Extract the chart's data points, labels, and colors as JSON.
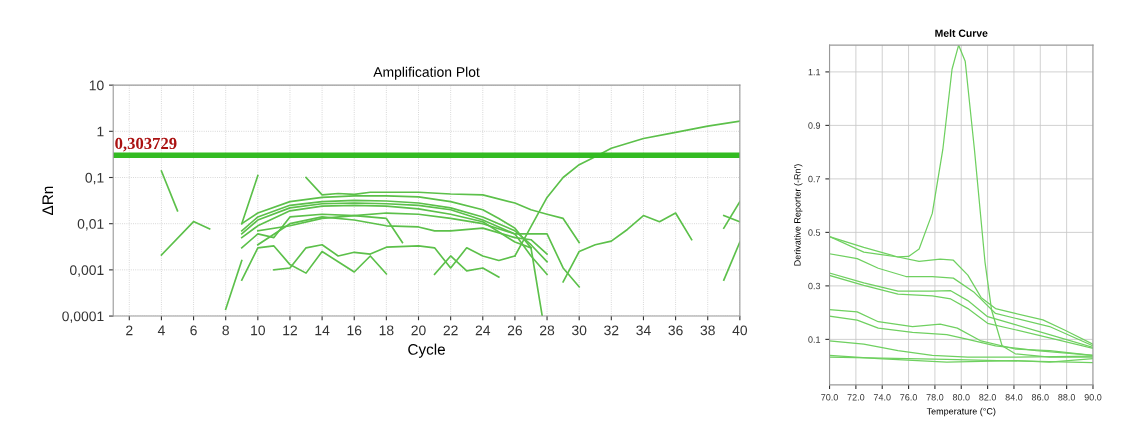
{
  "chart_data": [
    {
      "type": "line",
      "title": "Amplification Plot",
      "xlabel": "Cycle",
      "ylabel": "ΔRn",
      "log": "y",
      "grid": true,
      "xlim": [
        1,
        40
      ],
      "xticks": [
        2,
        4,
        6,
        8,
        10,
        12,
        14,
        16,
        18,
        20,
        22,
        24,
        26,
        28,
        30,
        32,
        34,
        36,
        38,
        40
      ],
      "ylim": [
        0.0001,
        10
      ],
      "yticks": [
        {
          "value": 0.0001,
          "label": "0,0001"
        },
        {
          "value": 0.001,
          "label": "0,001"
        },
        {
          "value": 0.01,
          "label": "0,01"
        },
        {
          "value": 0.1,
          "label": "0,1"
        },
        1,
        10
      ],
      "ref_lines": [
        {
          "axis": "y",
          "value": 0.303729,
          "label": "0,303729",
          "color": "#33bb22"
        }
      ],
      "series": [
        {
          "color": "#5cc04a",
          "x": [
            4,
            5
          ],
          "values": [
            0.138,
            0.019
          ]
        },
        {
          "color": "#5cc04a",
          "x": [
            4,
            6,
            7
          ],
          "values": [
            0.0021,
            0.0111,
            0.0077
          ]
        },
        {
          "color": "#5cc04a",
          "x": [
            8,
            9
          ],
          "values": [
            0.00014,
            0.0016
          ]
        },
        {
          "color": "#5cc04a",
          "x": [
            9,
            10
          ],
          "values": [
            0.01,
            0.11
          ]
        },
        {
          "color": "#5cc04a",
          "x": [
            13,
            14,
            15,
            16,
            17,
            18,
            20,
            22,
            24,
            26,
            27,
            28,
            29,
            30
          ],
          "values": [
            0.1,
            0.042,
            0.045,
            0.043,
            0.048,
            0.048,
            0.048,
            0.044,
            0.042,
            0.028,
            0.02,
            0.016,
            0.013,
            0.0039
          ]
        },
        {
          "color": "#5cc04a",
          "x": [
            9,
            10,
            12,
            14,
            16,
            18,
            20,
            22,
            24,
            25,
            26,
            27,
            27.7
          ],
          "values": [
            0.01,
            0.017,
            0.03,
            0.037,
            0.04,
            0.04,
            0.038,
            0.03,
            0.02,
            0.013,
            0.008,
            0.003,
            0.0001
          ]
        },
        {
          "color": "#5cc04a",
          "x": [
            9,
            10,
            12,
            14,
            16,
            18,
            20,
            22,
            24,
            26,
            27,
            28
          ],
          "values": [
            0.007,
            0.014,
            0.025,
            0.03,
            0.032,
            0.031,
            0.028,
            0.022,
            0.014,
            0.007,
            0.0035,
            0.0015
          ]
        },
        {
          "color": "#5cc04a",
          "x": [
            9,
            10,
            12,
            14,
            16,
            18,
            20,
            22,
            24,
            26,
            27,
            28
          ],
          "values": [
            0.006,
            0.012,
            0.022,
            0.027,
            0.028,
            0.027,
            0.025,
            0.02,
            0.012,
            0.006,
            0.002,
            0.0008
          ]
        },
        {
          "color": "#5cc04a",
          "x": [
            9,
            10,
            12,
            14,
            16,
            18,
            20,
            22,
            24,
            26,
            27
          ],
          "values": [
            0.005,
            0.009,
            0.019,
            0.024,
            0.025,
            0.024,
            0.021,
            0.016,
            0.011,
            0.004,
            0.003
          ]
        },
        {
          "color": "#5cc04a",
          "x": [
            9,
            10,
            11,
            12,
            14,
            16,
            18,
            19
          ],
          "values": [
            0.003,
            0.006,
            0.005,
            0.014,
            0.016,
            0.015,
            0.013,
            0.0039
          ]
        },
        {
          "color": "#5cc04a",
          "x": [
            10,
            12,
            14,
            16,
            18,
            20,
            22,
            24,
            26,
            28,
            29,
            30
          ],
          "values": [
            0.007,
            0.009,
            0.013,
            0.015,
            0.017,
            0.016,
            0.013,
            0.01,
            0.006,
            0.006,
            0.0011,
            0.00043
          ]
        },
        {
          "color": "#5cc04a",
          "x": [
            10,
            12,
            14,
            16,
            18,
            20,
            21,
            22,
            24,
            26,
            27,
            28
          ],
          "values": [
            0.0035,
            0.01,
            0.014,
            0.012,
            0.009,
            0.0085,
            0.007,
            0.007,
            0.008,
            0.005,
            0.0045,
            0.0022
          ]
        },
        {
          "color": "#5cc04a",
          "x": [
            9,
            10,
            11,
            12,
            13,
            14,
            15,
            16,
            17,
            18
          ],
          "values": [
            0.0006,
            0.003,
            0.0033,
            0.0013,
            0.00085,
            0.0025,
            0.0015,
            0.0009,
            0.002,
            0.00082
          ]
        },
        {
          "color": "#5cc04a",
          "x": [
            11,
            12,
            13,
            14,
            15,
            16,
            17,
            18,
            20,
            21,
            22,
            23,
            24,
            25,
            26
          ],
          "values": [
            0.001,
            0.0011,
            0.003,
            0.0035,
            0.002,
            0.0024,
            0.0022,
            0.0031,
            0.0033,
            0.003,
            0.0011,
            0.003,
            0.002,
            0.0016,
            0.002
          ]
        },
        {
          "color": "#5cc04a",
          "x": [
            21,
            22,
            23,
            24,
            25
          ],
          "values": [
            0.0008,
            0.002,
            0.00095,
            0.0011,
            0.0007
          ]
        },
        {
          "color": "#5cc04a",
          "x": [
            26,
            27,
            28,
            29,
            30,
            31,
            32,
            34,
            36,
            38,
            40
          ],
          "values": [
            0.002,
            0.0086,
            0.037,
            0.1,
            0.19,
            0.28,
            0.43,
            0.7,
            0.95,
            1.3,
            1.66
          ]
        },
        {
          "color": "#5cc04a",
          "x": [
            29,
            30,
            31,
            32,
            33,
            34,
            35,
            36,
            37
          ],
          "values": [
            0.00055,
            0.0025,
            0.0035,
            0.0042,
            0.0075,
            0.015,
            0.011,
            0.017,
            0.0045
          ]
        },
        {
          "color": "#5cc04a",
          "x": [
            39,
            40
          ],
          "values": [
            0.0006,
            0.004
          ]
        },
        {
          "color": "#5cc04a",
          "x": [
            39,
            40
          ],
          "values": [
            0.008,
            0.03
          ]
        },
        {
          "color": "#5cc04a",
          "x": [
            39,
            40
          ],
          "values": [
            0.015,
            0.011
          ]
        }
      ]
    },
    {
      "type": "line",
      "title": "Melt Curve",
      "xlabel": "Temperature (°C)",
      "ylabel": "Derivative Reporter (-Rn')",
      "grid": true,
      "xlim": [
        70,
        90
      ],
      "xticks": [
        {
          "value": 70,
          "label": "70.0"
        },
        {
          "value": 72,
          "label": "72.0"
        },
        {
          "value": 74,
          "label": "74.0"
        },
        {
          "value": 76,
          "label": "76.0"
        },
        {
          "value": 78,
          "label": "78.0"
        },
        {
          "value": 80,
          "label": "80.0"
        },
        {
          "value": 82,
          "label": "82.0"
        },
        {
          "value": 84,
          "label": "84.0"
        },
        {
          "value": 86,
          "label": "86.0"
        },
        {
          "value": 88,
          "label": "88.0"
        },
        {
          "value": 90,
          "label": "90.0"
        }
      ],
      "ylim": [
        -0.07,
        1.2
      ],
      "yticks": [
        0.1,
        0.3,
        0.5,
        0.7,
        0.9,
        1.1
      ],
      "series": [
        {
          "color": "#6fd060",
          "x": [
            70,
            72.6,
            75.2,
            76,
            76.8,
            77.8,
            78.6,
            79.3,
            79.8,
            80.3,
            81,
            81.8,
            82.3,
            83.1,
            84.1,
            86.7,
            90
          ],
          "values": [
            0.484,
            0.426,
            0.408,
            0.41,
            0.438,
            0.571,
            0.81,
            1.11,
            1.2,
            1.14,
            0.81,
            0.39,
            0.21,
            0.076,
            0.046,
            0.034,
            0.034
          ]
        },
        {
          "color": "#6fd060",
          "x": [
            70,
            72.6,
            75.2,
            76.8,
            78.4,
            79.4,
            80.5,
            81.5,
            82.6,
            84.1,
            86.2,
            87.8,
            90
          ],
          "values": [
            0.484,
            0.444,
            0.408,
            0.392,
            0.4,
            0.396,
            0.34,
            0.257,
            0.215,
            0.197,
            0.173,
            0.136,
            0.082
          ]
        },
        {
          "color": "#6fd060",
          "x": [
            70,
            72.1,
            73.7,
            75.8,
            77.8,
            79.4,
            81,
            82.6,
            84.1,
            86.7,
            90
          ],
          "values": [
            0.42,
            0.402,
            0.366,
            0.335,
            0.335,
            0.329,
            0.275,
            0.197,
            0.179,
            0.148,
            0.076
          ]
        },
        {
          "color": "#6fd060",
          "x": [
            70,
            72.6,
            75.2,
            77.8,
            79.2,
            80.5,
            82,
            84.1,
            86.7,
            90
          ],
          "values": [
            0.348,
            0.311,
            0.28,
            0.28,
            0.282,
            0.245,
            0.185,
            0.155,
            0.118,
            0.07
          ]
        },
        {
          "color": "#6fd060",
          "x": [
            70,
            72.6,
            75.2,
            77.8,
            79.2,
            80.5,
            82,
            84.1,
            86.7,
            90
          ],
          "values": [
            0.339,
            0.302,
            0.269,
            0.263,
            0.251,
            0.215,
            0.16,
            0.136,
            0.106,
            0.066
          ]
        },
        {
          "color": "#6fd060",
          "x": [
            70,
            72.1,
            73.7,
            76.3,
            78.4,
            79.7,
            81.5,
            84.1,
            86.7,
            90
          ],
          "values": [
            0.211,
            0.203,
            0.166,
            0.148,
            0.157,
            0.142,
            0.094,
            0.064,
            0.058,
            0.04
          ]
        },
        {
          "color": "#6fd060",
          "x": [
            70,
            72.1,
            73.7,
            76.3,
            78.9,
            80.5,
            82.6,
            85.7,
            90
          ],
          "values": [
            0.187,
            0.172,
            0.142,
            0.126,
            0.118,
            0.1,
            0.076,
            0.058,
            0.04
          ]
        },
        {
          "color": "#6fd060",
          "x": [
            70,
            72.6,
            75.2,
            77.8,
            80.5,
            84.1,
            90
          ],
          "values": [
            0.094,
            0.082,
            0.058,
            0.04,
            0.034,
            0.034,
            0.037
          ]
        },
        {
          "color": "#6fd060",
          "x": [
            70,
            73.7,
            78.9,
            84.1,
            86.7,
            90
          ],
          "values": [
            0.04,
            0.028,
            0.015,
            0.021,
            0.015,
            0.028
          ]
        },
        {
          "color": "#6fd060",
          "x": [
            70,
            78.9,
            90
          ],
          "values": [
            0.034,
            0.025,
            0.013
          ]
        }
      ]
    }
  ]
}
